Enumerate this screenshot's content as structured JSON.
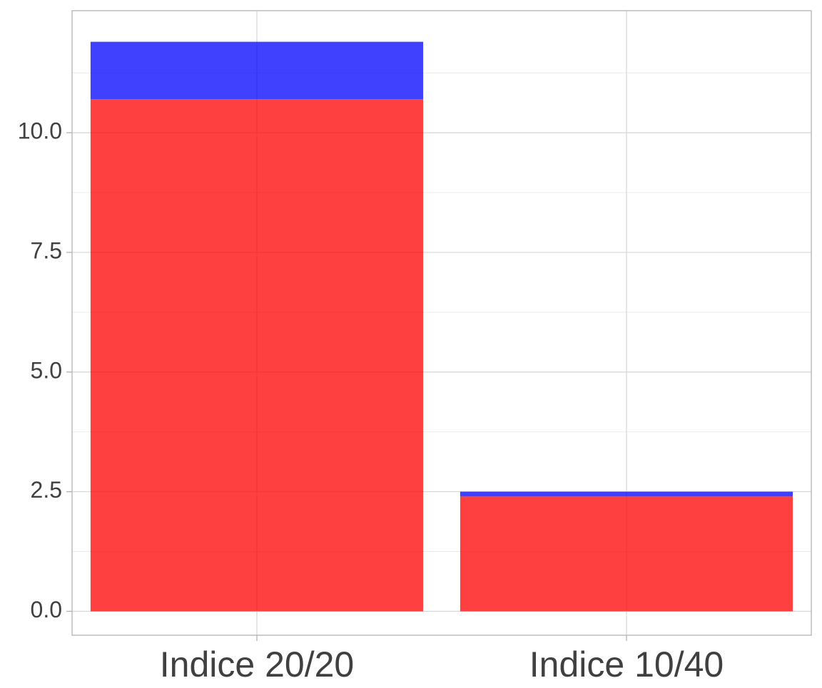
{
  "chart_data": {
    "type": "bar",
    "stacked": true,
    "categories": [
      "Indice 20/20",
      "Indice 10/40"
    ],
    "series": [
      {
        "color": "#ff0000",
        "opacity": 0.75,
        "values": [
          10.7,
          2.4
        ]
      },
      {
        "color": "#0000ff",
        "opacity": 0.75,
        "values": [
          1.2,
          0.1
        ]
      }
    ],
    "title": "",
    "xlabel": "",
    "ylabel": "",
    "ylim": [
      -0.5,
      12.55
    ],
    "yticks": [
      0.0,
      2.5,
      5.0,
      7.5,
      10.0
    ],
    "ytick_labels": [
      "0.0",
      "2.5",
      "5.0",
      "7.5",
      "10.0"
    ],
    "grid": true,
    "minor_grid": true,
    "legend": "none",
    "colors": {
      "panel_border": "#b3b3b3",
      "grid_major": "#d9d9d9",
      "grid_minor": "#ebebeb",
      "axis_text": "#404040",
      "background": "#ffffff"
    }
  }
}
